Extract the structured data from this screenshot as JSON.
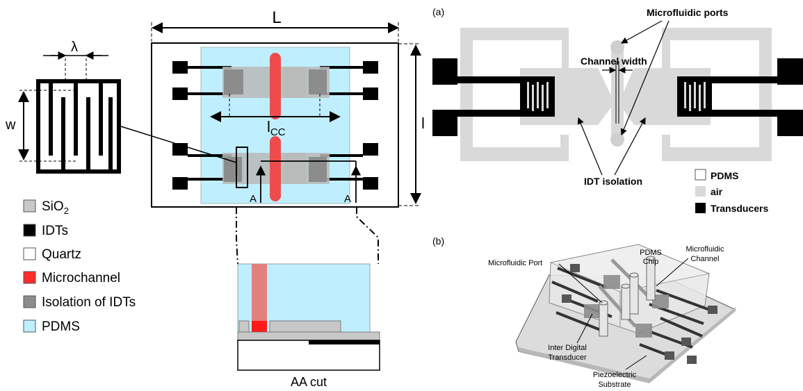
{
  "left": {
    "dim_L": "L",
    "dim_l": "l",
    "dim_lambda": "λ",
    "dim_w": "w",
    "dim_lcc": "l",
    "dim_lcc_sub": "CC",
    "cut_a_left": "A",
    "cut_a_right": "A",
    "aa_cut": "AA cut",
    "legend": [
      {
        "label": "SiO",
        "sub": "2",
        "color": "#c8c8c8"
      },
      {
        "label": "IDTs",
        "sub": "",
        "color": "#000000"
      },
      {
        "label": "Quartz",
        "sub": "",
        "color": "#ffffff"
      },
      {
        "label": "Microchannel",
        "sub": "",
        "color": "#ff2a2a"
      },
      {
        "label": "Isolation of IDTs",
        "sub": "",
        "color": "#8c8c8c"
      },
      {
        "label": "PDMS",
        "sub": "",
        "color": "#bfefff"
      }
    ]
  },
  "panel_a": {
    "tag": "(a)",
    "microfluidic_ports": "Microfluidic ports",
    "channel_width": "Channel width",
    "idt_isolation": "IDT isolation",
    "legend": [
      {
        "label": "PDMS",
        "color": "#ffffff"
      },
      {
        "label": "air",
        "color": "#d9d9d9"
      },
      {
        "label": "Transducers",
        "color": "#000000"
      }
    ]
  },
  "panel_b": {
    "tag": "(b)",
    "pdms_chip_1": "PDMS",
    "pdms_chip_2": "Chip",
    "microfluidic_channel_1": "Microfluidic",
    "microfluidic_channel_2": "Channel",
    "microfluidic_port": "Microfluidic Port",
    "idt_1": "Inter Digital",
    "idt_2": "Transducer",
    "substrate_1": "Piezoelectric",
    "substrate_2": "Substrate"
  }
}
